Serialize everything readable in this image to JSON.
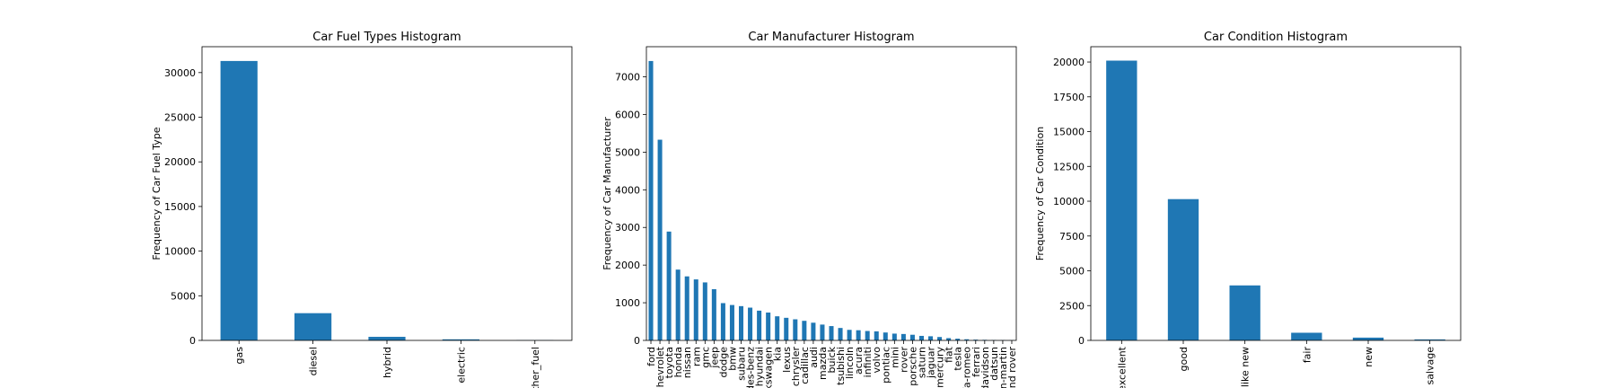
{
  "chart_data": [
    {
      "type": "bar",
      "title": "Car Fuel Types Histogram",
      "xlabel": "",
      "ylabel": "Frequency of Car Fuel Type",
      "categories": [
        "gas",
        "diesel",
        "hybrid",
        "electric",
        "ther_fuel"
      ],
      "values": [
        31300,
        3050,
        400,
        120,
        30
      ],
      "yticks": [
        0,
        5000,
        10000,
        15000,
        20000,
        25000,
        30000
      ],
      "ylim": [
        0,
        32900
      ],
      "color": "#1f77b4"
    },
    {
      "type": "bar",
      "title": "Car Manufacturer Histogram",
      "xlabel": "",
      "ylabel": "Frequency of Car Manufacturer",
      "categories": [
        "ford",
        "chevrolet",
        "toyota",
        "honda",
        "nissan",
        "ram",
        "gmc",
        "jeep",
        "dodge",
        "bmw",
        "subaru",
        "des-benz",
        "hyundai",
        "kswagen",
        "kia",
        "lexus",
        "chrysler",
        "cadillac",
        "audi",
        "mazda",
        "buick",
        "tsubishi",
        "lincoln",
        "acura",
        "infiniti",
        "volvo",
        "pontiac",
        "mini",
        "rover",
        "porsche",
        "saturn",
        "jaguar",
        "mercury",
        "fiat",
        "tesla",
        "fa-romeo",
        "ferrari",
        "davidson",
        "datsun",
        "in-martin",
        "nd rover"
      ],
      "values": [
        7420,
        5330,
        2890,
        1880,
        1700,
        1620,
        1540,
        1360,
        990,
        940,
        910,
        870,
        790,
        740,
        640,
        600,
        560,
        520,
        470,
        420,
        380,
        330,
        280,
        270,
        250,
        240,
        210,
        180,
        170,
        150,
        120,
        110,
        90,
        60,
        45,
        30,
        20,
        15,
        10,
        8,
        5
      ],
      "yticks": [
        0,
        1000,
        2000,
        3000,
        4000,
        5000,
        6000,
        7000
      ],
      "ylim": [
        0,
        7800
      ],
      "color": "#1f77b4"
    },
    {
      "type": "bar",
      "title": "Car Condition Histogram",
      "xlabel": "",
      "ylabel": "Frequency of Car Condition",
      "categories": [
        "excellent",
        "good",
        "like new",
        "fair",
        "new",
        "salvage"
      ],
      "values": [
        20100,
        10150,
        3950,
        550,
        200,
        70
      ],
      "yticks": [
        0,
        2500,
        5000,
        7500,
        10000,
        12500,
        15000,
        17500,
        20000
      ],
      "ylim": [
        0,
        21100
      ],
      "color": "#1f77b4"
    }
  ]
}
